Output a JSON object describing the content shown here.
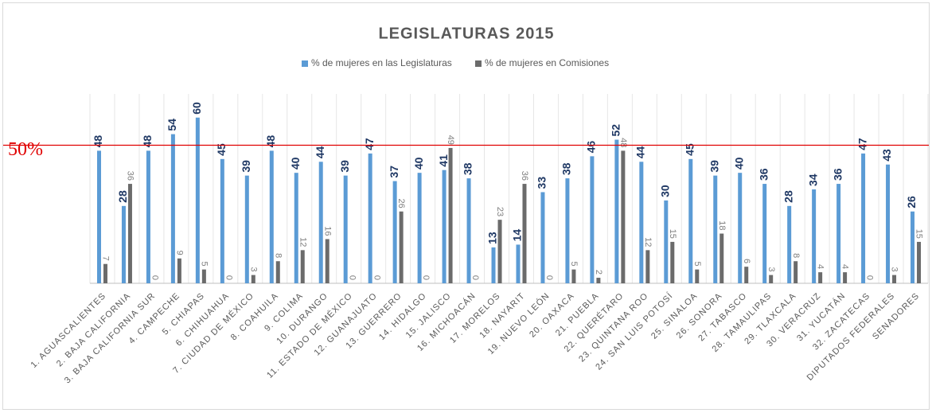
{
  "chart_data": {
    "type": "bar",
    "title": "LEGISLATURAS 2015",
    "categories": [
      "1. AGUASCALIENTES",
      "2. BAJA CALIFORNIA",
      "3. BAJA CALIFORNIA SUR",
      "4. CAMPECHE",
      "5. CHIAPAS",
      "6. CHIHUAHUA",
      "7. CIUDAD DE MÉXICO",
      "8. COAHUILA",
      "9. COLIMA",
      "10. DURANGO",
      "11. ESTADO DE MÉXICO",
      "12. GUANAJUATO",
      "13. GUERRERO",
      "14. HIDALGO",
      "15. JALISCO",
      "16. MICHOACÁN",
      "17. MORELOS",
      "18. NAYARIT",
      "19. NUEVO LEÓN",
      "20. OAXACA",
      "21. PUEBLA",
      "22. QUERÉTARO",
      "23. QUINTANA ROO",
      "24. SAN LUIS POTOSÍ",
      "25. SINALOA",
      "26. SONORA",
      "27. TABASCO",
      "28. TAMAULIPAS",
      "29. TLAXCALA",
      "30. VERACRUZ",
      "31. YUCATÁN",
      "32. ZACATECAS",
      "DIPUTADOS FEDERALES",
      "SENADORES"
    ],
    "series": [
      {
        "name": "% de mujeres en las Legislaturas",
        "color": "#5b9bd5",
        "values": [
          48,
          28,
          48,
          54,
          60,
          45,
          39,
          48,
          40,
          44,
          39,
          47,
          37,
          40,
          41,
          38,
          13,
          14,
          33,
          38,
          46,
          52,
          44,
          30,
          45,
          39,
          40,
          36,
          28,
          34,
          36,
          47,
          43,
          26
        ]
      },
      {
        "name": "% de mujeres en Comisiones",
        "color": "#6b6b6b",
        "values": [
          7,
          36,
          0,
          9,
          5,
          0,
          3,
          8,
          12,
          16,
          0,
          0,
          26,
          0,
          49,
          0,
          23,
          36,
          0,
          5,
          2,
          48,
          12,
          15,
          5,
          18,
          6,
          3,
          8,
          4,
          4,
          0,
          3,
          15
        ]
      }
    ],
    "ylim": [
      0,
      68
    ],
    "reference_line": {
      "value": 50,
      "label": "50%",
      "color": "#e00000"
    },
    "legend": "top"
  }
}
